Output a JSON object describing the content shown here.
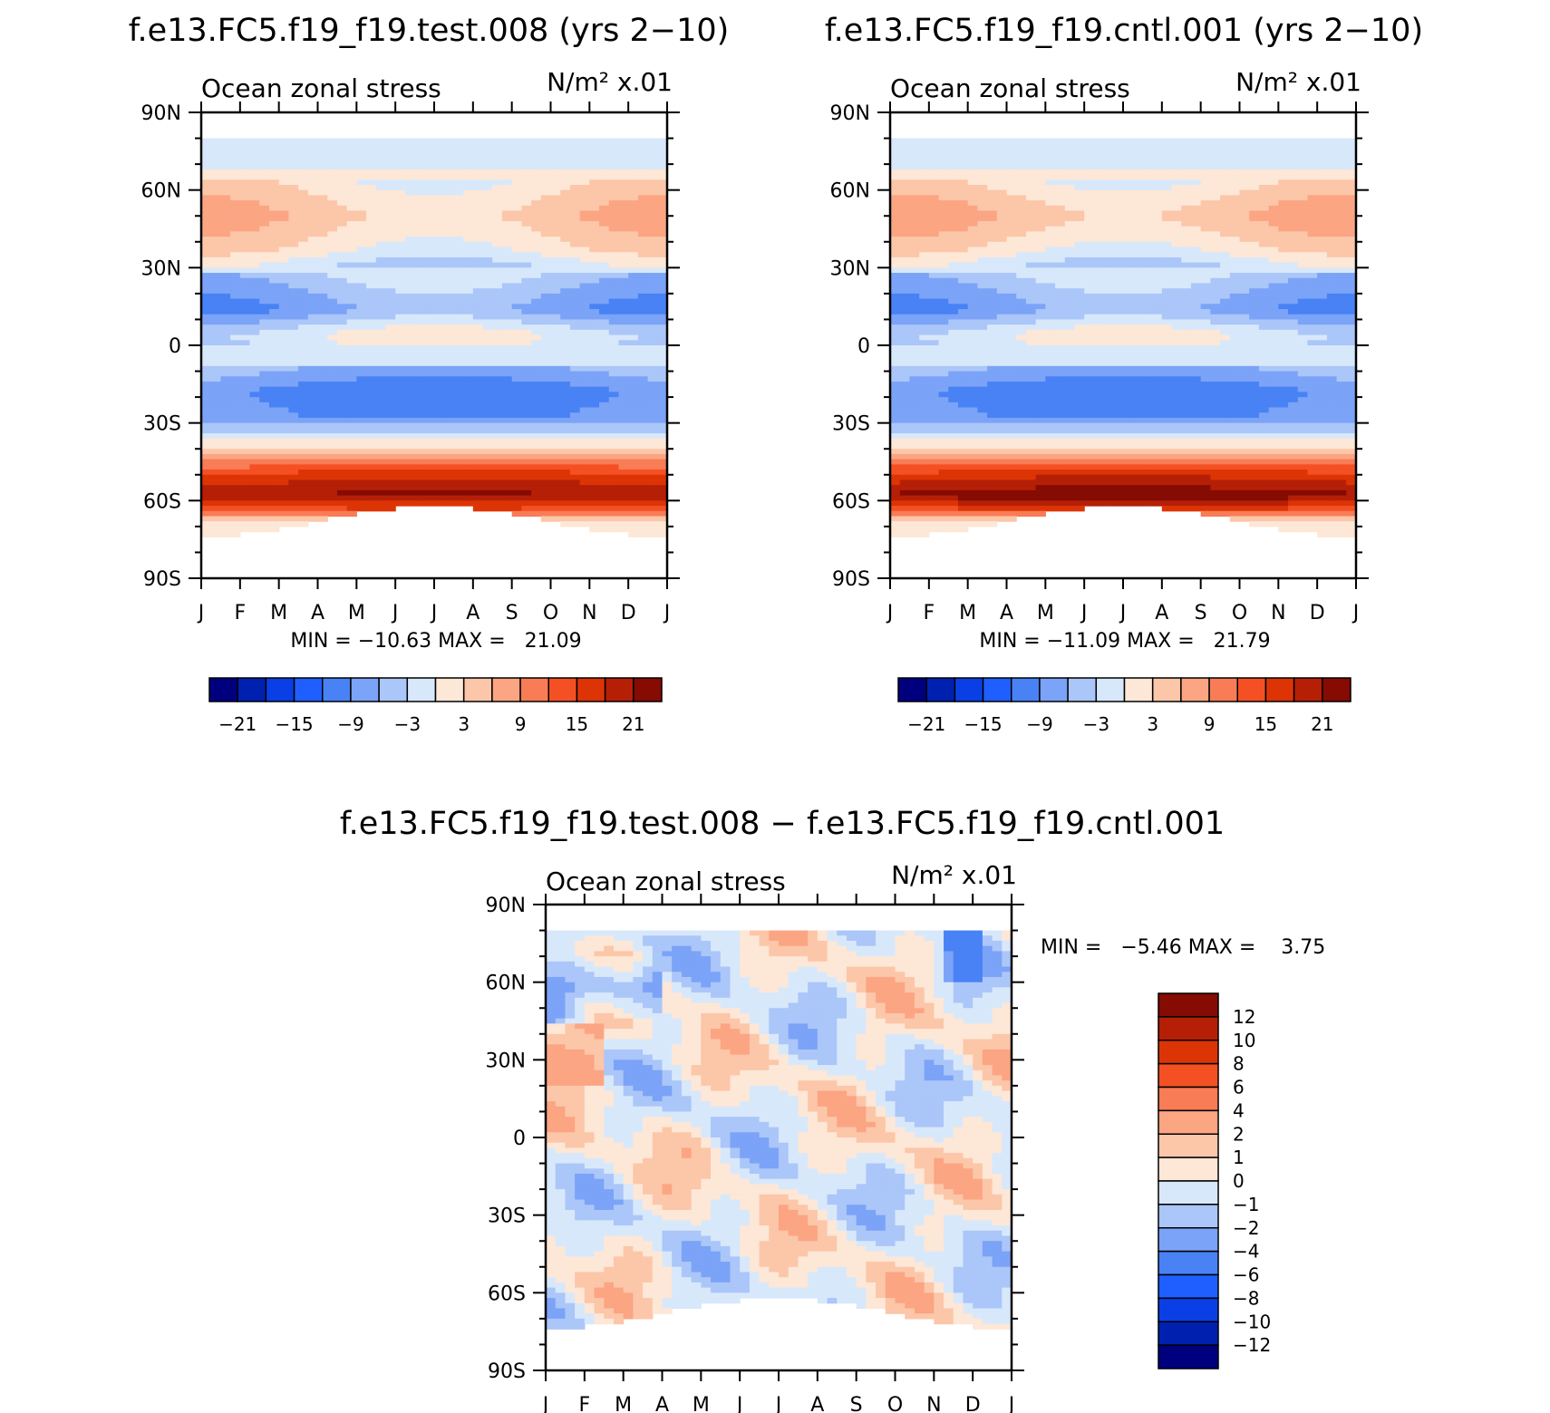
{
  "chart_data": [
    {
      "type": "heatmap",
      "id": "test",
      "title": "f.e13.FC5.f19_f19.test.008 (yrs 2−10)",
      "subtitle": "Ocean zonal stress",
      "units": "N/m² x.01",
      "x_tick_labels": [
        "J",
        "F",
        "M",
        "A",
        "M",
        "J",
        "J",
        "A",
        "S",
        "O",
        "N",
        "D",
        "J"
      ],
      "y_tick_labels": [
        "90N",
        "60N",
        "30N",
        "0",
        "30S",
        "60S",
        "90S"
      ],
      "ylim": [
        -90,
        90
      ],
      "stats_text": "MIN = −10.63 MAX =   21.09",
      "min": -10.63,
      "max": 21.09,
      "colorbar_tick_labels": [
        "−21",
        "−15",
        "−9",
        "−3",
        "3",
        "9",
        "15",
        "21"
      ],
      "profile": {
        "lats": [
          80,
          72,
          62,
          50,
          38,
          28,
          14,
          4,
          -6,
          -18,
          -30,
          -40,
          -50,
          -58,
          -64,
          -68,
          -76
        ],
        "values": [
          -1,
          -2,
          3,
          6,
          3,
          -3,
          -8,
          0,
          -2,
          -8,
          -6,
          3,
          15,
          20,
          12,
          2,
          -1
        ]
      },
      "colorbar_levels": [
        -24,
        -21,
        -18,
        -15,
        -12,
        -9,
        -6,
        -3,
        0,
        3,
        6,
        9,
        12,
        15,
        18,
        21,
        24
      ],
      "colors": [
        "#00007f",
        "#0021b0",
        "#0a3fe6",
        "#1f5fff",
        "#4882f5",
        "#7ba3f7",
        "#abc6f8",
        "#d8e8fb",
        "#fde7d6",
        "#fcc6a9",
        "#fba583",
        "#f87c55",
        "#f45024",
        "#dd3406",
        "#b51f06",
        "#850b03"
      ]
    },
    {
      "type": "heatmap",
      "id": "cntl",
      "title": "f.e13.FC5.f19_f19.cntl.001 (yrs 2−10)",
      "subtitle": "Ocean zonal stress",
      "units": "N/m² x.01",
      "x_tick_labels": [
        "J",
        "F",
        "M",
        "A",
        "M",
        "J",
        "J",
        "A",
        "S",
        "O",
        "N",
        "D",
        "J"
      ],
      "y_tick_labels": [
        "90N",
        "60N",
        "30N",
        "0",
        "30S",
        "60S",
        "90S"
      ],
      "ylim": [
        -90,
        90
      ],
      "stats_text": "MIN = −11.09 MAX =   21.79",
      "min": -11.09,
      "max": 21.79,
      "colorbar_tick_labels": [
        "−21",
        "−15",
        "−9",
        "−3",
        "3",
        "9",
        "15",
        "21"
      ],
      "profile": {
        "lats": [
          80,
          72,
          62,
          50,
          38,
          28,
          14,
          4,
          -6,
          -18,
          -30,
          -40,
          -50,
          -58,
          -64,
          -68,
          -76
        ],
        "values": [
          -1,
          -2,
          3,
          7,
          3,
          -3,
          -8,
          0,
          -2,
          -8,
          -6,
          3,
          15,
          21,
          12,
          2,
          -1
        ]
      },
      "colorbar_levels": [
        -24,
        -21,
        -18,
        -15,
        -12,
        -9,
        -6,
        -3,
        0,
        3,
        6,
        9,
        12,
        15,
        18,
        21,
        24
      ],
      "colors": [
        "#00007f",
        "#0021b0",
        "#0a3fe6",
        "#1f5fff",
        "#4882f5",
        "#7ba3f7",
        "#abc6f8",
        "#d8e8fb",
        "#fde7d6",
        "#fcc6a9",
        "#fba583",
        "#f87c55",
        "#f45024",
        "#dd3406",
        "#b51f06",
        "#850b03"
      ]
    },
    {
      "type": "heatmap",
      "id": "diff",
      "title": "f.e13.FC5.f19_f19.test.008 − f.e13.FC5.f19_f19.cntl.001",
      "subtitle": "Ocean zonal stress",
      "units": "N/m² x.01",
      "x_tick_labels": [
        "J",
        "F",
        "M",
        "A",
        "M",
        "J",
        "J",
        "A",
        "S",
        "O",
        "N",
        "D",
        "J"
      ],
      "y_tick_labels": [
        "90N",
        "60N",
        "30N",
        "0",
        "30S",
        "60S",
        "90S"
      ],
      "ylim": [
        -90,
        90
      ],
      "stats_text": "MIN =   −5.46 MAX =    3.75",
      "min": -5.46,
      "max": 3.75,
      "colorbar_tick_labels": [
        "12",
        "10",
        "8",
        "6",
        "4",
        "2",
        "1",
        "0",
        "−1",
        "−2",
        "−4",
        "−6",
        "−8",
        "−10",
        "−12"
      ],
      "colorbar_levels": [
        -14,
        -12,
        -10,
        -8,
        -6,
        -4,
        -2,
        -1,
        0,
        1,
        2,
        4,
        6,
        8,
        10,
        12,
        14
      ],
      "colors": [
        "#00007f",
        "#0021b0",
        "#0a3fe6",
        "#1f5fff",
        "#4882f5",
        "#7ba3f7",
        "#abc6f8",
        "#d8e8fb",
        "#fde7d6",
        "#fcc6a9",
        "#fba583",
        "#f87c55",
        "#f45024",
        "#dd3406",
        "#b51f06",
        "#850b03"
      ]
    }
  ]
}
